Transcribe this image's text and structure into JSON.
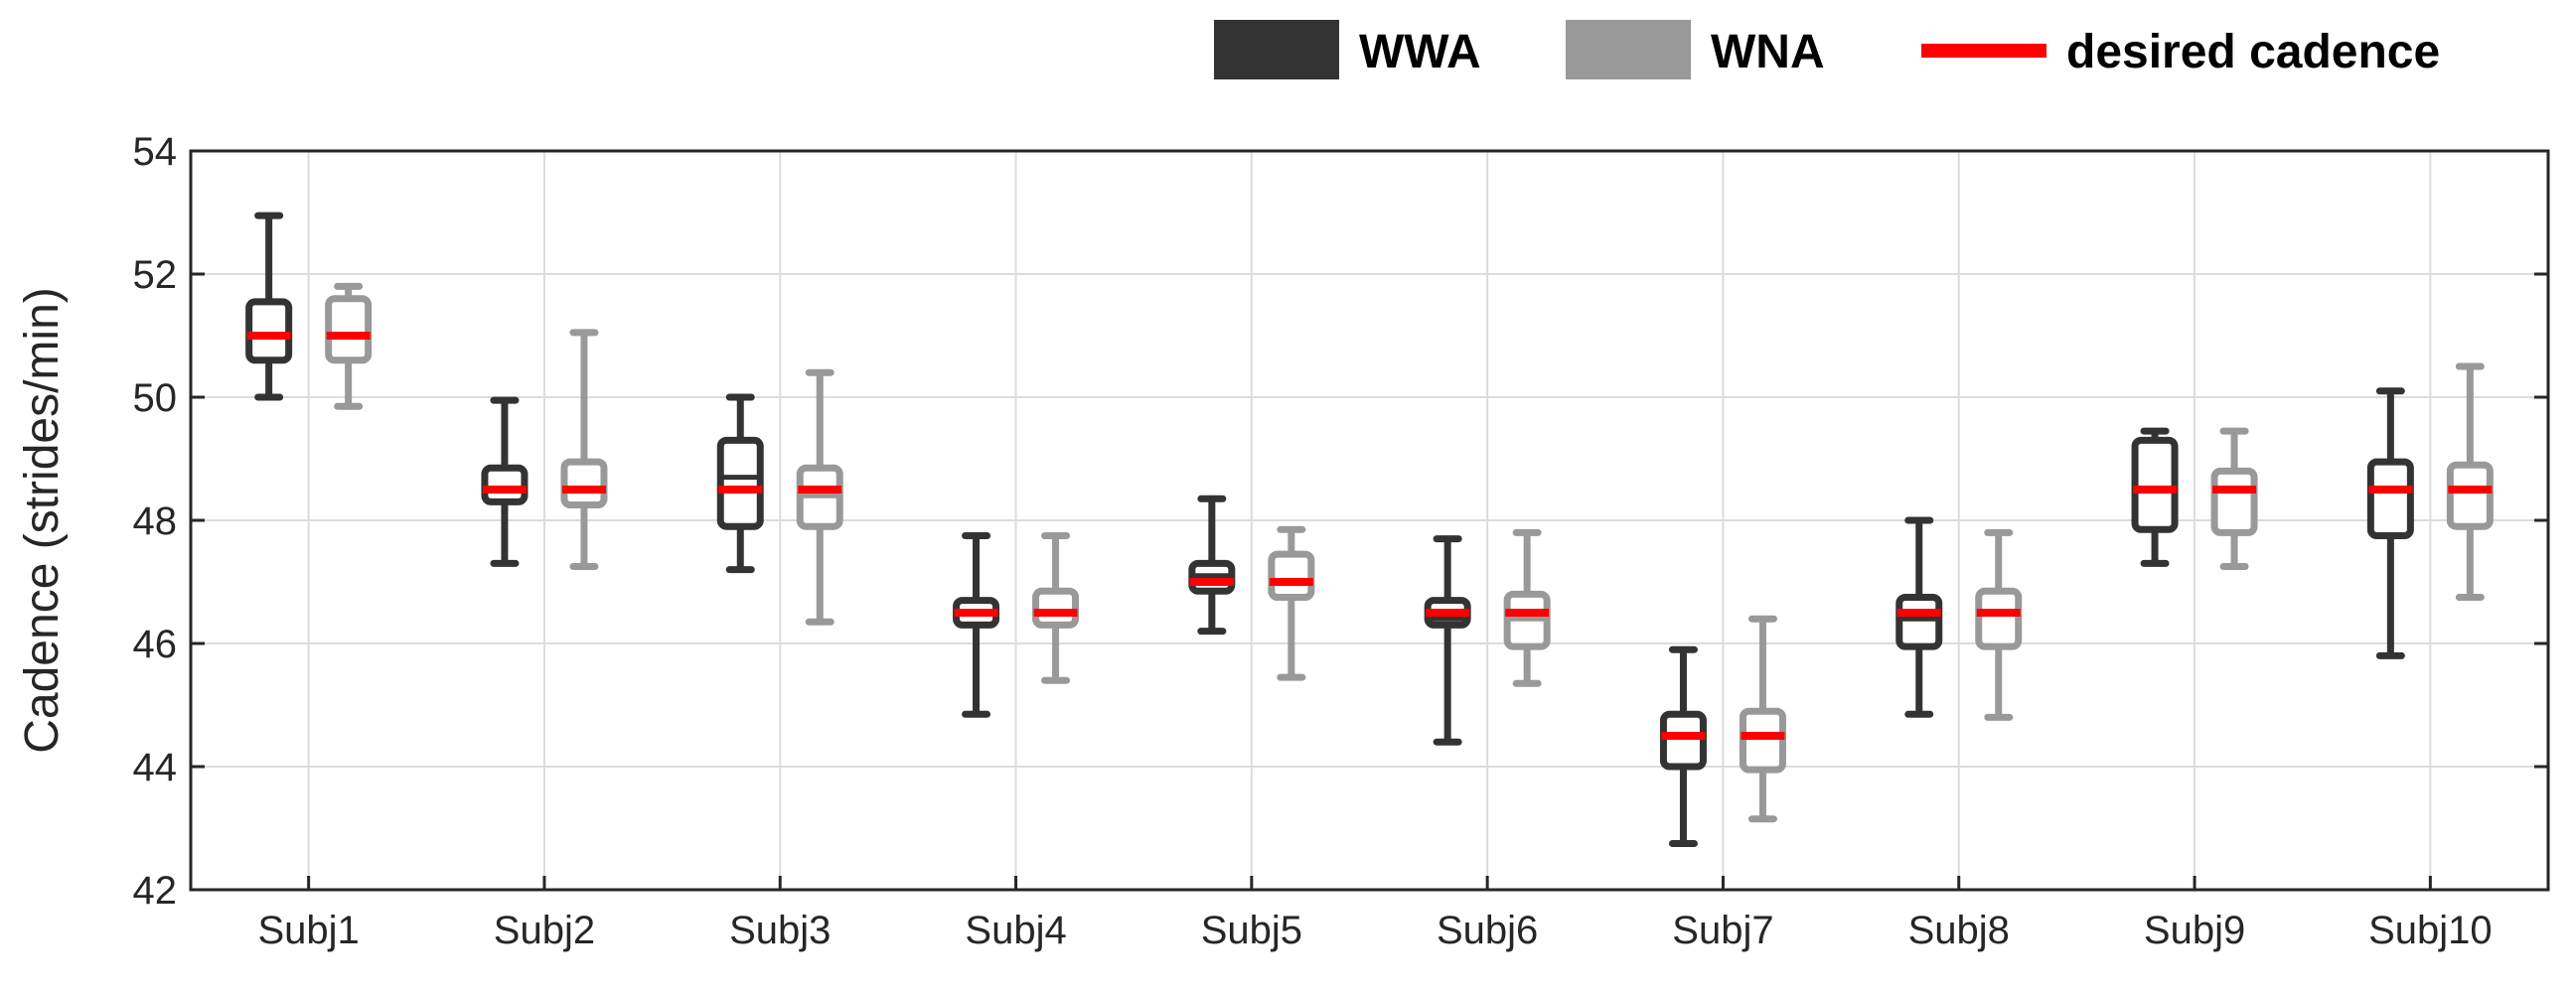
{
  "chart_data": {
    "type": "box",
    "title": "",
    "xlabel": "",
    "ylabel": "Cadence (strides/min)",
    "ylim": [
      42,
      54
    ],
    "yticks": [
      42,
      44,
      46,
      48,
      50,
      52,
      54
    ],
    "grid": true,
    "legend_position": "top-right",
    "categories": [
      "Subj1",
      "Subj2",
      "Subj3",
      "Subj4",
      "Subj5",
      "Subj6",
      "Subj7",
      "Subj8",
      "Subj9",
      "Subj10"
    ],
    "legend": [
      {
        "label": "WWA",
        "color": "#333333",
        "kind": "box"
      },
      {
        "label": "WNA",
        "color": "#999999",
        "kind": "box"
      },
      {
        "label": "desired cadence",
        "color": "#ff0000",
        "kind": "line"
      }
    ],
    "desired_cadence": [
      51.0,
      48.5,
      48.5,
      46.5,
      47.0,
      46.5,
      44.5,
      46.5,
      48.5,
      48.5
    ],
    "series": [
      {
        "name": "WWA",
        "color": "#333333",
        "boxes": [
          {
            "min": 50.0,
            "q1": 50.6,
            "median": 51.0,
            "q3": 51.55,
            "max": 52.95
          },
          {
            "min": 47.3,
            "q1": 48.3,
            "median": 48.5,
            "q3": 48.85,
            "max": 49.95
          },
          {
            "min": 47.2,
            "q1": 47.9,
            "median": 48.7,
            "q3": 49.3,
            "max": 50.0
          },
          {
            "min": 44.85,
            "q1": 46.3,
            "median": 46.5,
            "q3": 46.7,
            "max": 47.75
          },
          {
            "min": 46.2,
            "q1": 46.85,
            "median": 47.1,
            "q3": 47.3,
            "max": 48.35
          },
          {
            "min": 44.4,
            "q1": 46.3,
            "median": 46.4,
            "q3": 46.7,
            "max": 47.7
          },
          {
            "min": 42.75,
            "q1": 44.0,
            "median": 44.5,
            "q3": 44.85,
            "max": 45.9
          },
          {
            "min": 44.85,
            "q1": 45.95,
            "median": 46.4,
            "q3": 46.75,
            "max": 48.0
          },
          {
            "min": 47.3,
            "q1": 47.85,
            "median": 48.5,
            "q3": 49.3,
            "max": 49.45
          },
          {
            "min": 45.8,
            "q1": 47.75,
            "median": 48.5,
            "q3": 48.95,
            "max": 50.1
          }
        ]
      },
      {
        "name": "WNA",
        "color": "#999999",
        "boxes": [
          {
            "min": 49.85,
            "q1": 50.6,
            "median": 51.0,
            "q3": 51.6,
            "max": 51.8
          },
          {
            "min": 47.25,
            "q1": 48.25,
            "median": 48.5,
            "q3": 48.95,
            "max": 51.05
          },
          {
            "min": 46.35,
            "q1": 47.9,
            "median": 48.4,
            "q3": 48.85,
            "max": 50.4
          },
          {
            "min": 45.4,
            "q1": 46.3,
            "median": 46.5,
            "q3": 46.85,
            "max": 47.75
          },
          {
            "min": 45.45,
            "q1": 46.75,
            "median": 47.0,
            "q3": 47.45,
            "max": 47.85
          },
          {
            "min": 45.35,
            "q1": 45.95,
            "median": 46.4,
            "q3": 46.8,
            "max": 47.8
          },
          {
            "min": 43.15,
            "q1": 43.95,
            "median": 44.5,
            "q3": 44.9,
            "max": 46.4
          },
          {
            "min": 44.8,
            "q1": 45.95,
            "median": 46.5,
            "q3": 46.85,
            "max": 47.8
          },
          {
            "min": 47.25,
            "q1": 47.8,
            "median": 48.5,
            "q3": 48.8,
            "max": 49.45
          },
          {
            "min": 46.75,
            "q1": 47.9,
            "median": 48.5,
            "q3": 48.9,
            "max": 50.5
          }
        ]
      }
    ]
  }
}
